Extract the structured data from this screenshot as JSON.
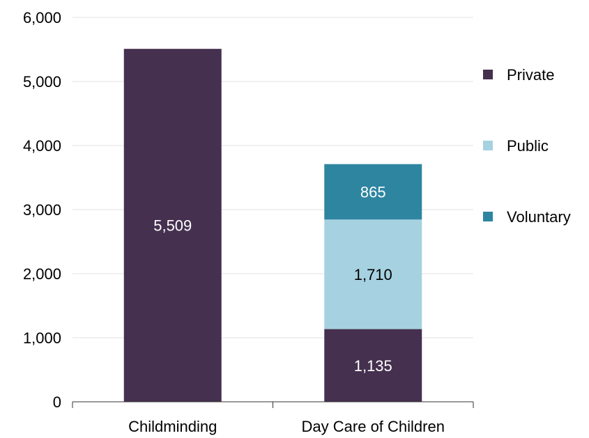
{
  "chart_data": {
    "type": "bar",
    "stacked": true,
    "categories": [
      "Childminding",
      "Day Care of Children"
    ],
    "series": [
      {
        "name": "Private",
        "values": [
          5509,
          1135
        ],
        "labels": [
          "5,509",
          "1,135"
        ],
        "color": "#45304f",
        "label_color": "#ffffff"
      },
      {
        "name": "Public",
        "values": [
          0,
          1710
        ],
        "labels": [
          "",
          "1,710"
        ],
        "color": "#a6d1e0",
        "label_color": "#000000"
      },
      {
        "name": "Voluntary",
        "values": [
          0,
          865
        ],
        "labels": [
          "",
          "865"
        ],
        "color": "#2e85a0",
        "label_color": "#ffffff"
      }
    ],
    "ylim": [
      0,
      6000
    ],
    "yticks": [
      0,
      1000,
      2000,
      3000,
      4000,
      5000,
      6000
    ],
    "ytick_labels": [
      "0",
      "1,000",
      "2,000",
      "3,000",
      "4,000",
      "5,000",
      "6,000"
    ],
    "grid": true,
    "gridline_color": "#e0e0e0",
    "axis_color": "#333333",
    "legend_placement": "right",
    "title": "",
    "xlabel": "",
    "ylabel": ""
  }
}
